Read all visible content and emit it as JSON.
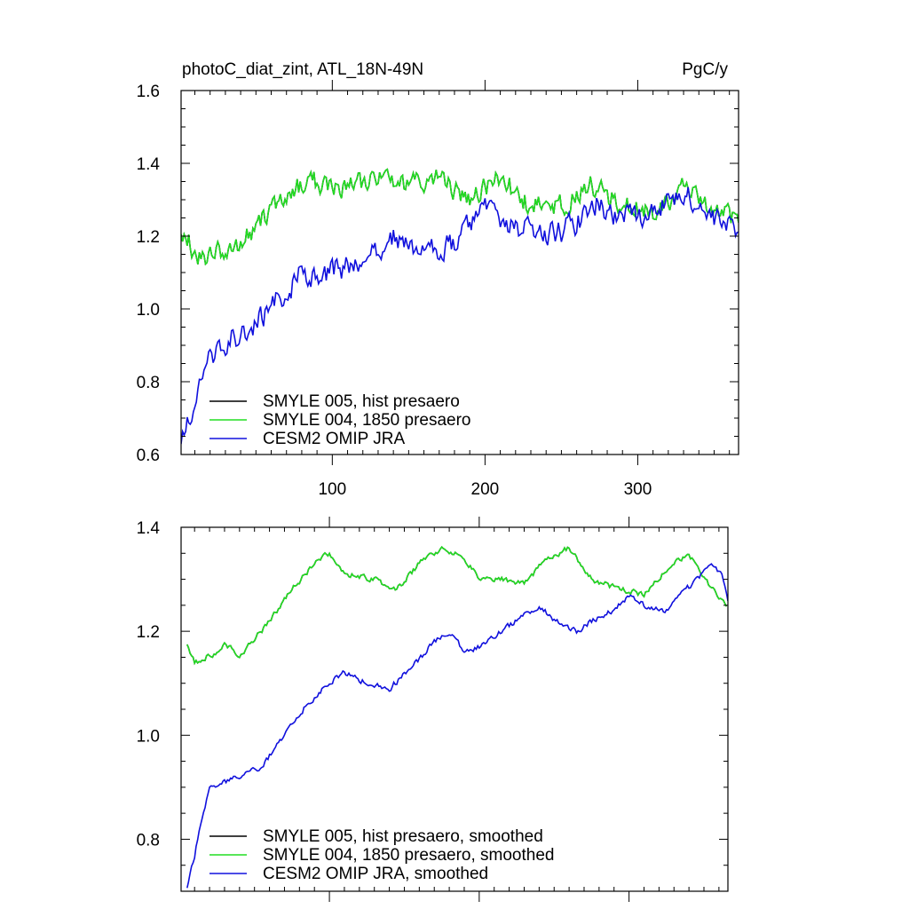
{
  "header": {
    "left_title": "photoC_diat_zint, ATL_18N-49N",
    "right_title": "PgC/y"
  },
  "colors": {
    "black": "#000000",
    "green": "#22dd22",
    "blue": "#1010dd"
  },
  "chart_data": [
    {
      "type": "line",
      "xlim": [
        1,
        366
      ],
      "ylim": [
        0.6,
        1.6
      ],
      "x_ticks": [
        100,
        200,
        300
      ],
      "x_tick_labels": [
        "100",
        "200",
        "300"
      ],
      "y_ticks": [
        0.6,
        0.8,
        1.0,
        1.2,
        1.4,
        1.6
      ],
      "y_tick_labels": [
        "0.6",
        "0.8",
        "1.0",
        "1.2",
        "1.4",
        "1.6"
      ],
      "legend_position": "bottom-left",
      "grid": false,
      "series": [
        {
          "name": "SMYLE 005, hist presaero",
          "color": "#000000",
          "anchors": [
            [
              1,
              1.23
            ],
            [
              10,
              1.15
            ],
            [
              20,
              1.15
            ],
            [
              35,
              1.17
            ],
            [
              50,
              1.22
            ],
            [
              70,
              1.32
            ],
            [
              90,
              1.35
            ],
            [
              110,
              1.33
            ],
            [
              130,
              1.36
            ],
            [
              150,
              1.34
            ],
            [
              170,
              1.36
            ],
            [
              190,
              1.3
            ],
            [
              210,
              1.36
            ],
            [
              230,
              1.28
            ],
            [
              250,
              1.28
            ],
            [
              270,
              1.34
            ],
            [
              290,
              1.28
            ],
            [
              310,
              1.27
            ],
            [
              330,
              1.33
            ],
            [
              350,
              1.26
            ],
            [
              366,
              1.25
            ]
          ],
          "amp": 0.045,
          "seed": 7
        },
        {
          "name": "SMYLE 004, 1850 presaero",
          "color": "#22dd22",
          "anchors": [
            [
              1,
              1.23
            ],
            [
              10,
              1.15
            ],
            [
              20,
              1.15
            ],
            [
              35,
              1.17
            ],
            [
              50,
              1.22
            ],
            [
              70,
              1.32
            ],
            [
              90,
              1.35
            ],
            [
              110,
              1.33
            ],
            [
              130,
              1.36
            ],
            [
              150,
              1.34
            ],
            [
              170,
              1.36
            ],
            [
              190,
              1.3
            ],
            [
              210,
              1.36
            ],
            [
              230,
              1.28
            ],
            [
              250,
              1.28
            ],
            [
              270,
              1.34
            ],
            [
              290,
              1.28
            ],
            [
              310,
              1.27
            ],
            [
              330,
              1.33
            ],
            [
              350,
              1.26
            ],
            [
              366,
              1.25
            ]
          ],
          "amp": 0.045,
          "seed": 7
        },
        {
          "name": "CESM2 OMIP JRA",
          "color": "#1010dd",
          "anchors": [
            [
              1,
              0.62
            ],
            [
              8,
              0.72
            ],
            [
              15,
              0.82
            ],
            [
              25,
              0.9
            ],
            [
              40,
              0.93
            ],
            [
              60,
              1.0
            ],
            [
              80,
              1.1
            ],
            [
              100,
              1.1
            ],
            [
              120,
              1.14
            ],
            [
              140,
              1.2
            ],
            [
              160,
              1.15
            ],
            [
              180,
              1.18
            ],
            [
              200,
              1.27
            ],
            [
              220,
              1.22
            ],
            [
              240,
              1.2
            ],
            [
              260,
              1.23
            ],
            [
              270,
              1.3
            ],
            [
              290,
              1.25
            ],
            [
              310,
              1.27
            ],
            [
              330,
              1.32
            ],
            [
              350,
              1.24
            ],
            [
              366,
              1.22
            ]
          ],
          "amp": 0.05,
          "seed": 13
        }
      ]
    },
    {
      "type": "line",
      "xlim": [
        1,
        366
      ],
      "ylim": [
        0.7,
        1.4
      ],
      "x_ticks": [
        100,
        200,
        300
      ],
      "y_ticks": [
        0.8,
        1.0,
        1.2,
        1.4
      ],
      "y_tick_labels": [
        "0.8",
        "1.0",
        "1.2",
        "1.4"
      ],
      "legend_position": "bottom-left",
      "grid": false,
      "series": [
        {
          "name": "SMYLE 005, hist presaero, smoothed",
          "color": "#000000",
          "anchors": [
            [
              5,
              1.17
            ],
            [
              10,
              1.14
            ],
            [
              25,
              1.16
            ],
            [
              30,
              1.18
            ],
            [
              40,
              1.15
            ],
            [
              60,
              1.22
            ],
            [
              75,
              1.28
            ],
            [
              90,
              1.33
            ],
            [
              100,
              1.35
            ],
            [
              110,
              1.31
            ],
            [
              130,
              1.3
            ],
            [
              145,
              1.28
            ],
            [
              160,
              1.33
            ],
            [
              175,
              1.36
            ],
            [
              190,
              1.34
            ],
            [
              200,
              1.3
            ],
            [
              215,
              1.3
            ],
            [
              230,
              1.29
            ],
            [
              245,
              1.34
            ],
            [
              260,
              1.36
            ],
            [
              275,
              1.3
            ],
            [
              295,
              1.28
            ],
            [
              310,
              1.27
            ],
            [
              325,
              1.32
            ],
            [
              340,
              1.35
            ],
            [
              350,
              1.3
            ],
            [
              365,
              1.25
            ]
          ],
          "amp": 0.008,
          "seed": 3
        },
        {
          "name": "SMYLE 004, 1850 presaero, smoothed",
          "color": "#22dd22",
          "anchors": [
            [
              5,
              1.17
            ],
            [
              10,
              1.14
            ],
            [
              25,
              1.16
            ],
            [
              30,
              1.18
            ],
            [
              40,
              1.15
            ],
            [
              60,
              1.22
            ],
            [
              75,
              1.28
            ],
            [
              90,
              1.33
            ],
            [
              100,
              1.35
            ],
            [
              110,
              1.31
            ],
            [
              130,
              1.3
            ],
            [
              145,
              1.28
            ],
            [
              160,
              1.33
            ],
            [
              175,
              1.36
            ],
            [
              190,
              1.34
            ],
            [
              200,
              1.3
            ],
            [
              215,
              1.3
            ],
            [
              230,
              1.29
            ],
            [
              245,
              1.34
            ],
            [
              260,
              1.36
            ],
            [
              275,
              1.3
            ],
            [
              295,
              1.28
            ],
            [
              310,
              1.27
            ],
            [
              325,
              1.32
            ],
            [
              340,
              1.35
            ],
            [
              350,
              1.3
            ],
            [
              365,
              1.25
            ]
          ],
          "amp": 0.008,
          "seed": 3
        },
        {
          "name": "CESM2 OMIP JRA, smoothed",
          "color": "#1010dd",
          "anchors": [
            [
              5,
              0.71
            ],
            [
              10,
              0.77
            ],
            [
              15,
              0.84
            ],
            [
              20,
              0.9
            ],
            [
              30,
              0.91
            ],
            [
              40,
              0.92
            ],
            [
              55,
              0.94
            ],
            [
              70,
              1.0
            ],
            [
              85,
              1.06
            ],
            [
              100,
              1.1
            ],
            [
              110,
              1.12
            ],
            [
              125,
              1.1
            ],
            [
              140,
              1.09
            ],
            [
              155,
              1.13
            ],
            [
              170,
              1.18
            ],
            [
              180,
              1.2
            ],
            [
              190,
              1.16
            ],
            [
              200,
              1.17
            ],
            [
              210,
              1.19
            ],
            [
              225,
              1.22
            ],
            [
              240,
              1.25
            ],
            [
              250,
              1.22
            ],
            [
              265,
              1.2
            ],
            [
              275,
              1.22
            ],
            [
              290,
              1.24
            ],
            [
              300,
              1.27
            ],
            [
              310,
              1.25
            ],
            [
              325,
              1.24
            ],
            [
              335,
              1.27
            ],
            [
              345,
              1.3
            ],
            [
              355,
              1.33
            ],
            [
              362,
              1.31
            ],
            [
              366,
              1.26
            ]
          ],
          "amp": 0.008,
          "seed": 11
        }
      ]
    }
  ]
}
